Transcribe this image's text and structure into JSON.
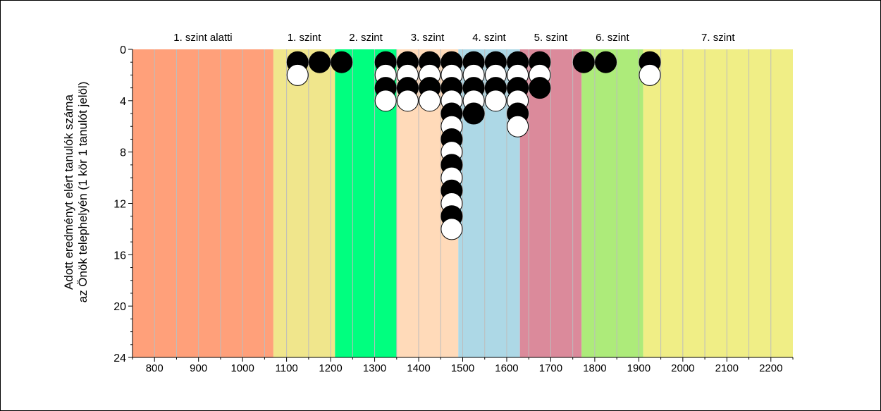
{
  "chart_data": {
    "type": "scatter",
    "ylabel_line1": "Adott eredményt elért tanulók száma",
    "ylabel_line2": "az Önök telephelyén (1 kör 1 tanulót jelöl)",
    "xlim": [
      750,
      2250
    ],
    "ylim": [
      0,
      24
    ],
    "y_inverted": true,
    "x_ticks": [
      800,
      900,
      1000,
      1100,
      1200,
      1300,
      1400,
      1500,
      1600,
      1700,
      1800,
      1900,
      2000,
      2100,
      2200
    ],
    "y_ticks": [
      0,
      4,
      8,
      12,
      16,
      20,
      24
    ],
    "grid": true,
    "bands": [
      {
        "label": "1. szint alatti",
        "from": 750,
        "to": 1070,
        "color": "#FFA07A"
      },
      {
        "label": "1. szint",
        "from": 1070,
        "to": 1210,
        "color": "#F0E68C"
      },
      {
        "label": "2. szint",
        "from": 1210,
        "to": 1350,
        "color": "#00FF7F"
      },
      {
        "label": "3. szint",
        "from": 1350,
        "to": 1490,
        "color": "#FFDAB9"
      },
      {
        "label": "4. szint",
        "from": 1490,
        "to": 1630,
        "color": "#ADD8E6"
      },
      {
        "label": "5. szint",
        "from": 1630,
        "to": 1770,
        "color": "#DB8A9B"
      },
      {
        "label": "6. szint",
        "from": 1770,
        "to": 1910,
        "color": "#ADEB7A"
      },
      {
        "label": "7. szint",
        "from": 1910,
        "to": 2250,
        "color": "#F0EE86"
      }
    ],
    "columns": [
      {
        "x": 1125,
        "count": 2
      },
      {
        "x": 1175,
        "count": 1
      },
      {
        "x": 1225,
        "count": 1
      },
      {
        "x": 1325,
        "count": 4
      },
      {
        "x": 1375,
        "count": 4
      },
      {
        "x": 1425,
        "count": 4
      },
      {
        "x": 1475,
        "count": 14
      },
      {
        "x": 1525,
        "count": 5
      },
      {
        "x": 1575,
        "count": 4
      },
      {
        "x": 1625,
        "count": 6
      },
      {
        "x": 1675,
        "count": 3
      },
      {
        "x": 1775,
        "count": 1
      },
      {
        "x": 1825,
        "count": 1
      },
      {
        "x": 1925,
        "count": 2
      }
    ],
    "marker_colors": {
      "odd": "#000000",
      "even": "#ffffff",
      "outline": "#000000"
    }
  }
}
